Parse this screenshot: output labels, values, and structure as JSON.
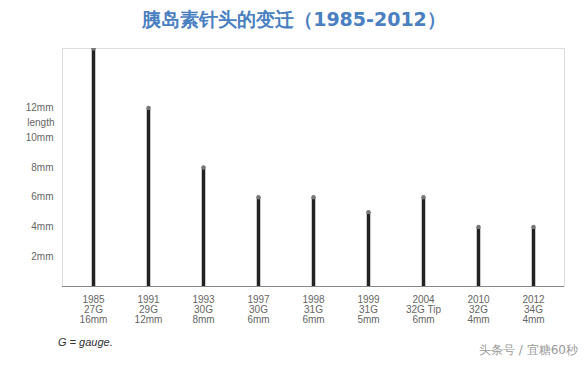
{
  "chart_data": {
    "type": "bar",
    "title": "胰岛素针头的变迁（1985-2012）",
    "categories": [
      "1985\n27G\n16mm",
      "1991\n29G\n12mm",
      "1993\n30G\n8mm",
      "1997\n30G\n6mm",
      "1998\n31G\n6mm",
      "1999\n31G\n5mm",
      "2004\n32G Tip\n6mm",
      "2010\n32G\n4mm",
      "2012\n34G\n4mm"
    ],
    "values": [
      16,
      12,
      8,
      6,
      6,
      5,
      6,
      4,
      4
    ],
    "color": "#222222",
    "y_label": "length",
    "ylim": [
      0,
      16
    ],
    "yticks": [
      {
        "value": 2,
        "label": "2mm"
      },
      {
        "value": 4,
        "label": "4mm"
      },
      {
        "value": 6,
        "label": "6mm"
      },
      {
        "value": 8,
        "label": "8mm"
      },
      {
        "value": 10,
        "label": "10mm"
      },
      {
        "value": 12,
        "label": "12mm"
      }
    ],
    "grid": false,
    "caption": "G = gauge.",
    "source": "头条号 / 宜糖60秒"
  }
}
